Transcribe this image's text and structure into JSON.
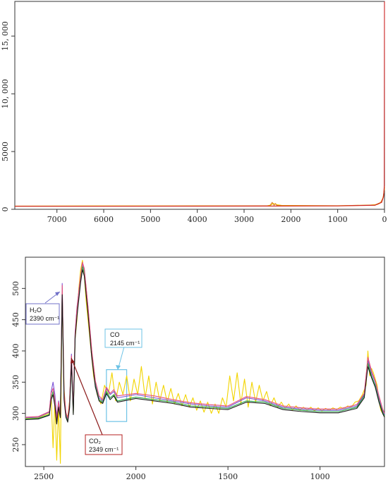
{
  "chart_data": [
    {
      "type": "line",
      "title": "",
      "xlabel": "",
      "ylabel": "",
      "xlim": [
        7900,
        0
      ],
      "ylim": [
        0,
        18000
      ],
      "x_reversed": true,
      "grid": false,
      "x_ticks": [
        7000,
        6000,
        5000,
        4000,
        3000,
        2000,
        1000,
        0
      ],
      "x_tick_labels": [
        "7000",
        "6000",
        "5000",
        "4000",
        "3000",
        "2000",
        "1000",
        "0"
      ],
      "y_ticks": [
        0,
        5000,
        10000,
        15000
      ],
      "y_tick_labels": [
        "0",
        "5000",
        "10, 000",
        "15, 000"
      ],
      "series": [
        {
          "color": "#f2d400",
          "x": [
            7900,
            7000,
            6000,
            5000,
            4000,
            3000,
            2500,
            2420,
            2380,
            2340,
            2300,
            2200,
            2000,
            1500,
            1000,
            700,
            500,
            300,
            150,
            100,
            60,
            40,
            20,
            10,
            0
          ],
          "y": [
            280,
            285,
            290,
            295,
            300,
            300,
            310,
            380,
            520,
            460,
            400,
            340,
            330,
            320,
            310,
            330,
            340,
            360,
            420,
            520,
            700,
            900,
            1200,
            1500,
            1800
          ]
        },
        {
          "color": "#e08020",
          "x": [
            7900,
            5000,
            3000,
            2450,
            2400,
            2360,
            2330,
            2300,
            2200,
            1000,
            200,
            80,
            30,
            10,
            0
          ],
          "y": [
            270,
            280,
            290,
            300,
            600,
            350,
            500,
            330,
            320,
            300,
            380,
            600,
            1000,
            1500,
            2000
          ]
        },
        {
          "color": "#cc2020",
          "x": [
            7900,
            4000,
            1000,
            200,
            60,
            20,
            5,
            0
          ],
          "y": [
            260,
            270,
            290,
            350,
            600,
            1100,
            2000,
            18000
          ]
        }
      ]
    },
    {
      "type": "line",
      "title": "",
      "xlabel": "",
      "ylabel": "",
      "xlim": [
        2600,
        650
      ],
      "ylim": [
        215,
        550
      ],
      "x_reversed": true,
      "grid": false,
      "x_ticks": [
        2500,
        2000,
        1500,
        1000
      ],
      "x_tick_labels": [
        "2500",
        "2000",
        "1500",
        "1000"
      ],
      "y_ticks": [
        250,
        300,
        350,
        400,
        450,
        500
      ],
      "y_tick_labels": [
        "250",
        "300",
        "350",
        "400",
        "450",
        "500"
      ],
      "series": [
        {
          "color": "#f2d400",
          "x": [
            2600,
            2530,
            2470,
            2460,
            2450,
            2440,
            2430,
            2420,
            2410,
            2400,
            2390,
            2380,
            2370,
            2360,
            2350,
            2340,
            2330,
            2320,
            2310,
            2300,
            2290,
            2280,
            2270,
            2250,
            2230,
            2210,
            2190,
            2170,
            2150,
            2130,
            2110,
            2090,
            2070,
            2050,
            2030,
            2010,
            1990,
            1970,
            1950,
            1930,
            1910,
            1890,
            1870,
            1850,
            1830,
            1810,
            1790,
            1770,
            1750,
            1730,
            1710,
            1690,
            1670,
            1650,
            1630,
            1610,
            1590,
            1570,
            1550,
            1530,
            1510,
            1490,
            1470,
            1450,
            1430,
            1410,
            1390,
            1370,
            1350,
            1330,
            1310,
            1290,
            1270,
            1250,
            1230,
            1210,
            1190,
            1170,
            1150,
            1130,
            1110,
            1090,
            1070,
            1050,
            1030,
            1010,
            990,
            970,
            950,
            930,
            910,
            890,
            870,
            850,
            830,
            810,
            790,
            770,
            750,
            740,
            730,
            720,
            710,
            700,
            690,
            680,
            670,
            660,
            650
          ],
          "y": [
            292,
            293,
            300,
            330,
            245,
            320,
            225,
            310,
            220,
            500,
            340,
            300,
            295,
            320,
            390,
            300,
            420,
            450,
            500,
            530,
            545,
            520,
            480,
            420,
            360,
            330,
            315,
            345,
            330,
            365,
            320,
            350,
            330,
            360,
            320,
            355,
            330,
            375,
            325,
            360,
            315,
            350,
            320,
            345,
            318,
            340,
            315,
            332,
            312,
            330,
            310,
            325,
            305,
            320,
            302,
            318,
            300,
            315,
            300,
            325,
            310,
            360,
            320,
            365,
            315,
            355,
            310,
            350,
            318,
            345,
            320,
            335,
            312,
            325,
            310,
            318,
            308,
            315,
            305,
            312,
            305,
            310,
            305,
            310,
            304,
            309,
            304,
            308,
            305,
            309,
            306,
            310,
            307,
            312,
            310,
            318,
            320,
            330,
            345,
            400,
            360,
            372,
            365,
            355,
            345,
            320,
            305,
            300,
            295
          ]
        },
        {
          "color": "#7b52d6",
          "x": [
            2600,
            2530,
            2470,
            2460,
            2450,
            2440,
            2430,
            2420,
            2410,
            2400,
            2390,
            2380,
            2370,
            2360,
            2350,
            2340,
            2330,
            2320,
            2300,
            2290,
            2280,
            2260,
            2240,
            2220,
            2200,
            2180,
            2160,
            2140,
            2120,
            2100,
            2000,
            1900,
            1800,
            1700,
            1600,
            1500,
            1400,
            1300,
            1200,
            1100,
            1000,
            900,
            800,
            760,
            740,
            720,
            700,
            680,
            660,
            650
          ],
          "y": [
            293,
            294,
            302,
            335,
            350,
            330,
            295,
            320,
            300,
            508,
            330,
            300,
            290,
            315,
            395,
            305,
            430,
            470,
            520,
            540,
            530,
            470,
            400,
            350,
            325,
            320,
            340,
            330,
            335,
            325,
            330,
            325,
            320,
            315,
            312,
            310,
            325,
            320,
            310,
            307,
            305,
            305,
            312,
            330,
            385,
            365,
            350,
            325,
            305,
            298
          ]
        },
        {
          "color": "#2aa84a",
          "x": [
            2600,
            2530,
            2470,
            2460,
            2450,
            2440,
            2430,
            2420,
            2410,
            2400,
            2390,
            2380,
            2370,
            2360,
            2350,
            2340,
            2330,
            2320,
            2300,
            2290,
            2280,
            2260,
            2240,
            2220,
            2200,
            2180,
            2160,
            2140,
            2120,
            2100,
            2000,
            1900,
            1800,
            1700,
            1600,
            1500,
            1400,
            1300,
            1200,
            1100,
            1000,
            900,
            800,
            760,
            740,
            720,
            700,
            680,
            660,
            650
          ],
          "y": [
            291,
            292,
            298,
            325,
            335,
            315,
            285,
            312,
            295,
            495,
            325,
            296,
            288,
            310,
            385,
            300,
            425,
            460,
            515,
            535,
            525,
            465,
            395,
            345,
            322,
            318,
            335,
            325,
            330,
            320,
            326,
            322,
            318,
            312,
            310,
            308,
            320,
            318,
            308,
            305,
            303,
            303,
            310,
            328,
            380,
            360,
            345,
            320,
            302,
            296
          ]
        },
        {
          "color": "#e8527c",
          "x": [
            2600,
            2530,
            2470,
            2460,
            2450,
            2440,
            2430,
            2420,
            2410,
            2400,
            2390,
            2380,
            2370,
            2360,
            2350,
            2340,
            2330,
            2320,
            2300,
            2290,
            2280,
            2260,
            2240,
            2220,
            2200,
            2180,
            2160,
            2140,
            2120,
            2100,
            2000,
            1900,
            1800,
            1700,
            1600,
            1500,
            1400,
            1300,
            1200,
            1100,
            1000,
            900,
            800,
            760,
            740,
            720,
            700,
            680,
            660,
            650
          ],
          "y": [
            294,
            295,
            303,
            332,
            340,
            322,
            290,
            318,
            298,
            505,
            335,
            302,
            292,
            318,
            392,
            306,
            428,
            468,
            522,
            542,
            532,
            472,
            402,
            352,
            328,
            322,
            342,
            332,
            338,
            328,
            332,
            328,
            322,
            317,
            314,
            312,
            327,
            322,
            312,
            309,
            307,
            307,
            314,
            332,
            390,
            368,
            352,
            328,
            307,
            300
          ]
        },
        {
          "color": "#1a1a1a",
          "x": [
            2600,
            2530,
            2470,
            2460,
            2450,
            2440,
            2430,
            2420,
            2410,
            2400,
            2390,
            2380,
            2370,
            2360,
            2350,
            2340,
            2330,
            2320,
            2300,
            2290,
            2280,
            2260,
            2240,
            2220,
            2200,
            2180,
            2160,
            2140,
            2120,
            2100,
            2000,
            1900,
            1800,
            1700,
            1600,
            1500,
            1400,
            1300,
            1200,
            1100,
            1000,
            900,
            800,
            760,
            740,
            720,
            700,
            680,
            660,
            650
          ],
          "y": [
            290,
            291,
            297,
            322,
            330,
            312,
            283,
            310,
            293,
            490,
            322,
            294,
            286,
            308,
            380,
            298,
            420,
            455,
            510,
            530,
            520,
            460,
            390,
            342,
            320,
            316,
            332,
            322,
            328,
            318,
            324,
            320,
            316,
            310,
            308,
            306,
            318,
            316,
            306,
            303,
            301,
            301,
            308,
            325,
            375,
            357,
            342,
            318,
            300,
            294
          ]
        }
      ],
      "annotations": [
        {
          "label": "H₂O",
          "value": "2390 cm⁻¹",
          "border_color": "#7070c8",
          "arrow_to": [
            2390,
            505
          ]
        },
        {
          "label": "CO",
          "value": "2145 cm⁻¹",
          "border_color": "#6ec3e6",
          "arrow_to": [
            2145,
            367
          ]
        },
        {
          "label": "CO₂",
          "value": "2349 cm⁻¹",
          "border_color": "#b42020",
          "arrow_to": [
            2349,
            385
          ]
        }
      ],
      "highlight_boxes": [
        {
          "x_range": [
            2160,
            2050
          ],
          "y_range": [
            287,
            370
          ],
          "color": "#6ec3e6"
        }
      ]
    }
  ]
}
